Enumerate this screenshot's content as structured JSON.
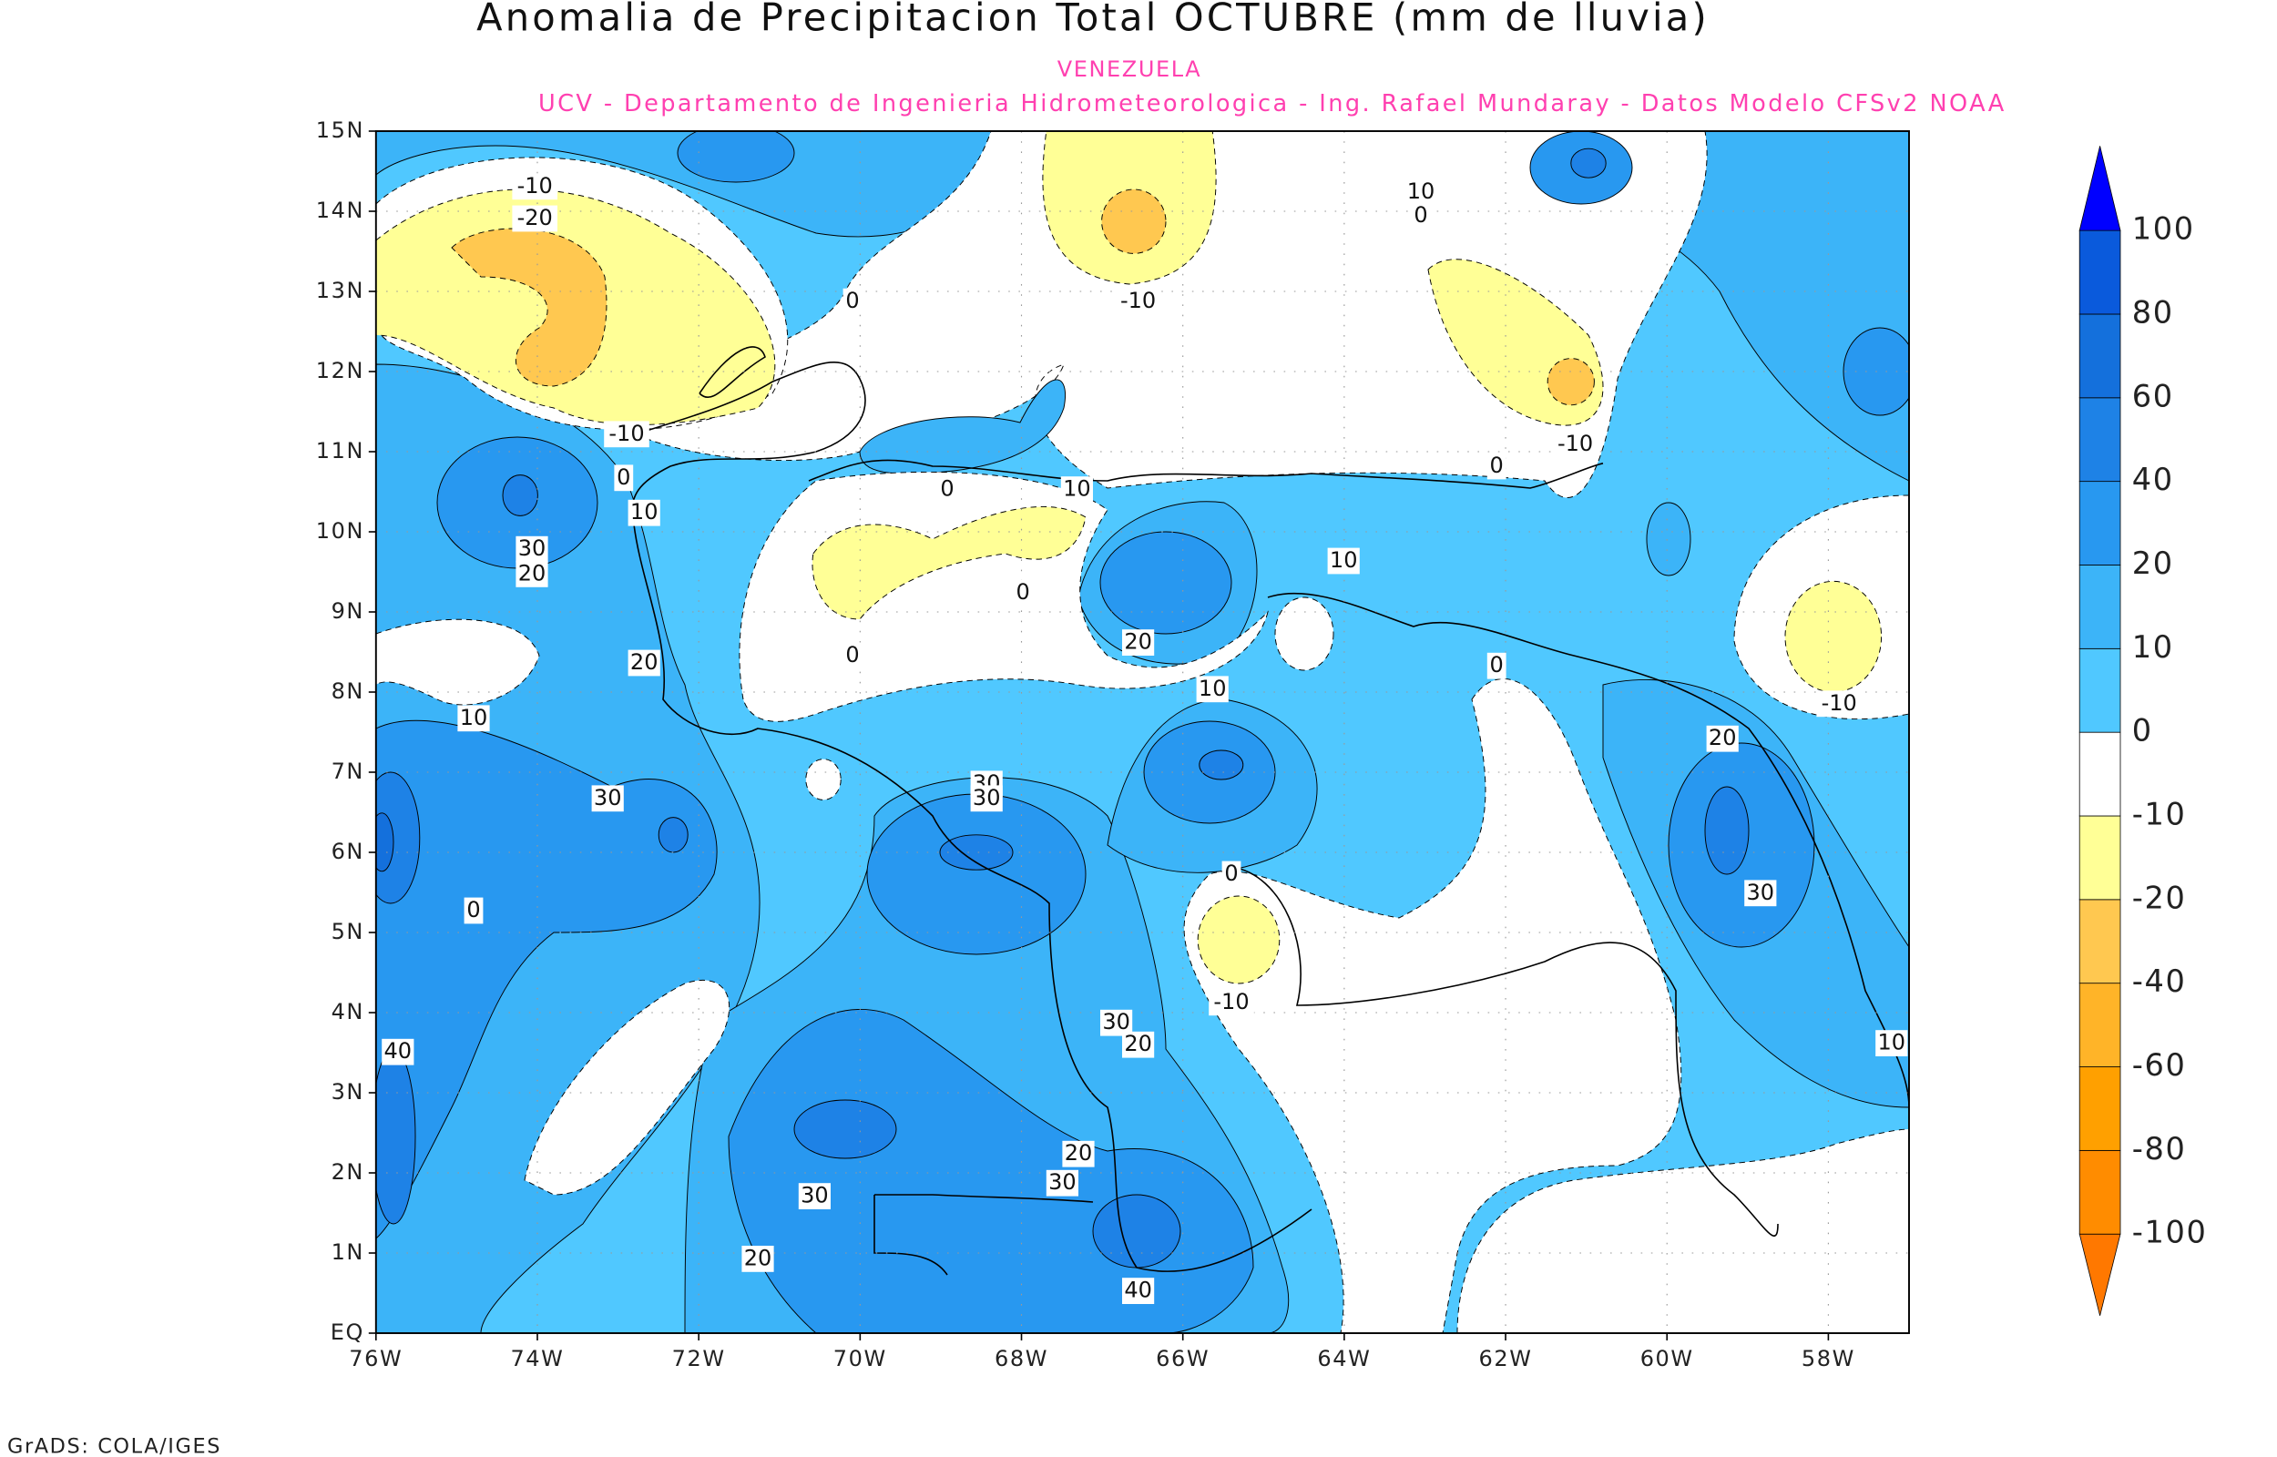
{
  "title": "Anomalia de Precipitacion Total OCTUBRE (mm de lluvia)",
  "subtitle": "VENEZUELA",
  "credits": "UCV - Departamento de Ingenieria Hidrometeorologica - Ing. Rafael Mundaray - Datos Modelo CFSv2 NOAA",
  "footer": "GrADS: COLA/IGES",
  "map": {
    "lonlim": [
      -76,
      -57
    ],
    "latlim": [
      0,
      15
    ],
    "lon_ticks": [
      {
        "value": -76,
        "label": "76W"
      },
      {
        "value": -74,
        "label": "74W"
      },
      {
        "value": -72,
        "label": "72W"
      },
      {
        "value": -70,
        "label": "70W"
      },
      {
        "value": -68,
        "label": "68W"
      },
      {
        "value": -66,
        "label": "66W"
      },
      {
        "value": -64,
        "label": "64W"
      },
      {
        "value": -62,
        "label": "62W"
      },
      {
        "value": -60,
        "label": "60W"
      },
      {
        "value": -58,
        "label": "58W"
      }
    ],
    "lat_ticks": [
      {
        "value": 0,
        "label": "EQ"
      },
      {
        "value": 1,
        "label": "1N"
      },
      {
        "value": 2,
        "label": "2N"
      },
      {
        "value": 3,
        "label": "3N"
      },
      {
        "value": 4,
        "label": "4N"
      },
      {
        "value": 5,
        "label": "5N"
      },
      {
        "value": 6,
        "label": "6N"
      },
      {
        "value": 7,
        "label": "7N"
      },
      {
        "value": 8,
        "label": "8N"
      },
      {
        "value": 9,
        "label": "9N"
      },
      {
        "value": 10,
        "label": "10N"
      },
      {
        "value": 11,
        "label": "11N"
      },
      {
        "value": 12,
        "label": "12N"
      },
      {
        "value": 13,
        "label": "13N"
      },
      {
        "value": 14,
        "label": "14N"
      },
      {
        "value": 15,
        "label": "15N"
      }
    ],
    "contour_labels": [
      -10,
      -20,
      0,
      -10,
      10,
      0,
      -10,
      0,
      10,
      30,
      20,
      20,
      10,
      0,
      10,
      0,
      0,
      20,
      10,
      10,
      0,
      0,
      -10,
      30,
      30,
      30,
      0,
      40,
      20,
      -10,
      30,
      10,
      -10,
      0,
      30,
      20,
      20,
      30,
      30,
      20,
      40
    ]
  },
  "colorbar": {
    "levels": [
      -100,
      -80,
      -60,
      -40,
      -20,
      -10,
      0,
      10,
      20,
      40,
      60,
      80,
      100
    ],
    "colors": [
      "#ff7800",
      "#ff8c00",
      "#ffa000",
      "#ffb428",
      "#ffc850",
      "#ffff96",
      "#ffffff",
      "#50c8ff",
      "#3cb4f8",
      "#2898f0",
      "#1e82e6",
      "#1470dc",
      "#0a5adc",
      "#0000ff"
    ]
  }
}
